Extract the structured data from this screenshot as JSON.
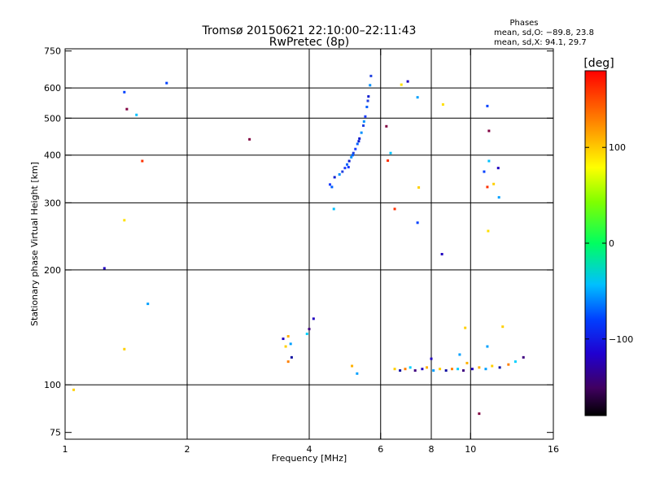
{
  "chart_data": {
    "type": "scatter",
    "title": "Tromsø 20150621 22:10:00–22:11:43",
    "subtitle": "RwPretec (8p)",
    "phases": {
      "heading": "Phases",
      "line_o": "mean, sd,O: −89.8, 23.8",
      "line_x": "mean, sd,X:  94.1, 29.7"
    },
    "xlabel": "Frequency [MHz]",
    "ylabel": "Stationary phase Virtual Height [km]",
    "xscale": "log",
    "yscale": "log",
    "xlim": [
      1,
      16
    ],
    "ylim": [
      72,
      760
    ],
    "grid": true,
    "x_ticks": [
      1,
      2,
      4,
      6,
      8,
      10,
      16
    ],
    "x_tick_labels": [
      "1",
      "2",
      "4",
      "6",
      "8",
      "10",
      "16"
    ],
    "x_gridlines": [
      2,
      4,
      6,
      8,
      10
    ],
    "y_ticks": [
      75,
      100,
      200,
      300,
      400,
      500,
      600,
      750
    ],
    "y_tick_labels": [
      "75",
      "100",
      "200",
      "300",
      "400",
      "500",
      "600",
      "750"
    ],
    "y_gridlines": [
      100,
      200,
      300,
      400,
      500,
      600
    ],
    "colorbar": {
      "label": "[deg]",
      "range": [
        -180,
        180
      ],
      "ticks": [
        -100,
        0,
        100
      ],
      "tick_labels": [
        "−100",
        "0",
        "100"
      ]
    },
    "echo_trace": [
      [
        4.5,
        335
      ],
      [
        4.55,
        330
      ],
      [
        4.62,
        350
      ],
      [
        4.75,
        356
      ],
      [
        4.83,
        362
      ],
      [
        4.9,
        370
      ],
      [
        4.96,
        378
      ],
      [
        5.02,
        386
      ],
      [
        5.08,
        395
      ],
      [
        5.14,
        405
      ],
      [
        5.2,
        415
      ],
      [
        5.26,
        428
      ],
      [
        5.32,
        442
      ],
      [
        5.38,
        458
      ],
      [
        5.44,
        478
      ],
      [
        5.5,
        505
      ],
      [
        5.55,
        535
      ],
      [
        5.6,
        570
      ],
      [
        5.65,
        610
      ],
      [
        5.68,
        645
      ],
      [
        5.0,
        372
      ],
      [
        5.12,
        400
      ],
      [
        5.3,
        435
      ],
      [
        5.46,
        490
      ],
      [
        5.58,
        555
      ]
    ],
    "low_cluster": [
      [
        3.45,
        132
      ],
      [
        3.55,
        134
      ],
      [
        3.6,
        128
      ],
      [
        3.5,
        126
      ],
      [
        3.62,
        118
      ],
      [
        3.55,
        115
      ],
      [
        3.95,
        136
      ],
      [
        4.0,
        140
      ],
      [
        4.1,
        149
      ],
      [
        5.1,
        112
      ],
      [
        5.25,
        107
      ],
      [
        6.5,
        110
      ],
      [
        6.7,
        109
      ],
      [
        6.9,
        110
      ],
      [
        7.1,
        111
      ],
      [
        7.3,
        109
      ],
      [
        7.6,
        110
      ],
      [
        7.8,
        111
      ],
      [
        8.1,
        109
      ],
      [
        8.4,
        110
      ],
      [
        8.7,
        109
      ],
      [
        9.0,
        110
      ],
      [
        9.3,
        110
      ],
      [
        9.6,
        109
      ],
      [
        10.1,
        110
      ],
      [
        10.5,
        111
      ],
      [
        10.9,
        110
      ],
      [
        11.3,
        112
      ],
      [
        11.8,
        111
      ],
      [
        12.4,
        113
      ],
      [
        12.9,
        115
      ],
      [
        13.5,
        118
      ],
      [
        8.0,
        117
      ],
      [
        9.8,
        114
      ],
      [
        11.0,
        126
      ],
      [
        12.0,
        142
      ]
    ],
    "scattered": [
      [
        1.05,
        97
      ],
      [
        1.4,
        585
      ],
      [
        1.42,
        528
      ],
      [
        1.5,
        510
      ],
      [
        1.55,
        386
      ],
      [
        1.4,
        270
      ],
      [
        1.25,
        202
      ],
      [
        1.6,
        163
      ],
      [
        1.4,
        124
      ],
      [
        1.78,
        618
      ],
      [
        2.85,
        440
      ],
      [
        4.6,
        289
      ],
      [
        6.5,
        289
      ],
      [
        6.75,
        612
      ],
      [
        7.0,
        624
      ],
      [
        7.4,
        567
      ],
      [
        7.45,
        329
      ],
      [
        7.4,
        266
      ],
      [
        6.2,
        476
      ],
      [
        6.35,
        405
      ],
      [
        6.25,
        387
      ],
      [
        8.55,
        543
      ],
      [
        8.5,
        220
      ],
      [
        9.4,
        120
      ],
      [
        9.7,
        141
      ],
      [
        11.0,
        538
      ],
      [
        11.1,
        463
      ],
      [
        11.1,
        386
      ],
      [
        11.0,
        330
      ],
      [
        11.05,
        253
      ],
      [
        11.7,
        370
      ],
      [
        11.75,
        310
      ],
      [
        11.4,
        336
      ],
      [
        10.8,
        362
      ],
      [
        10.5,
        84
      ]
    ]
  }
}
